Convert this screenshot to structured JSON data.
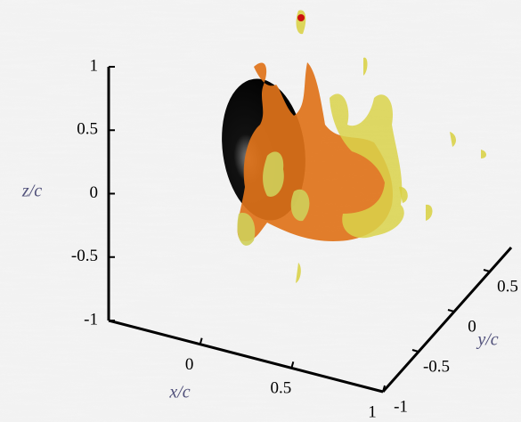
{
  "chart_data": {
    "type": "surface3d",
    "zlabel": "z/c",
    "xlabel": "x/c",
    "ylabel": "y/c",
    "zlim": [
      -1,
      1
    ],
    "zticks": [
      1,
      0.5,
      0,
      -0.5,
      -1
    ],
    "xlim": [
      -0.5,
      1
    ],
    "xticks": [
      0,
      0.5,
      1
    ],
    "ylim": [
      -1,
      0.8
    ],
    "yticks": [
      -1,
      -0.5,
      0,
      0.5
    ]
  }
}
